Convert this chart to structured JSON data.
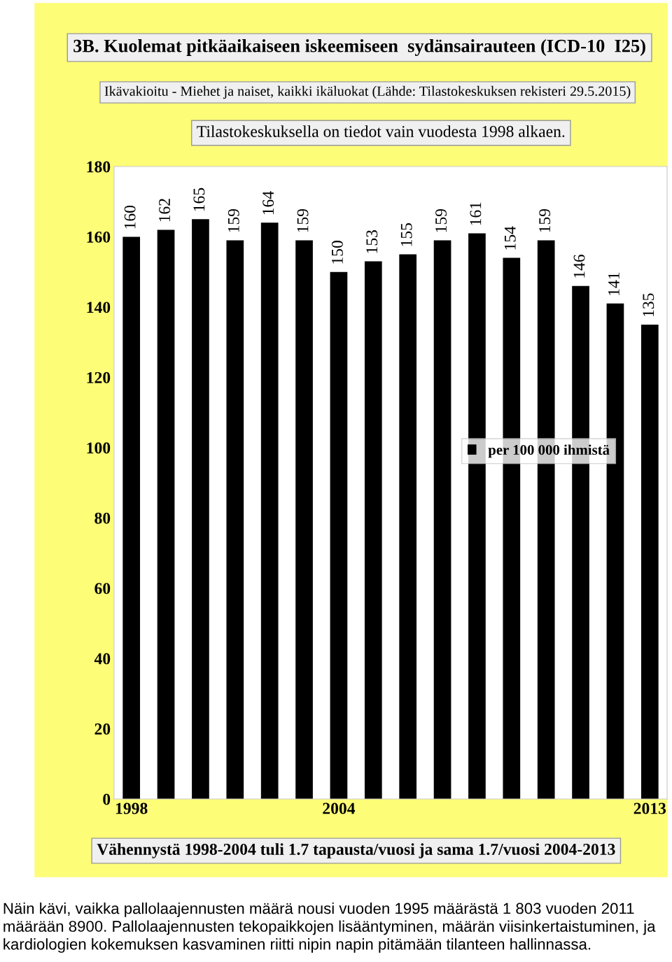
{
  "chart_data": {
    "type": "bar",
    "title": "3B. Kuolemat pitkäaikaiseen iskeemiseen  sydänsairauteen (ICD-10  I25)",
    "subtitle": "Ikävakioitu - Miehet ja naiset, kaikki ikäluokat (Lähde: Tilastokeskuksen rekisteri 29.5.2015)",
    "annotations": [
      "Tilastokeskuksella on tiedot vain vuodesta 1998 alkaen.",
      "Vähennystä 1998-2004 tuli 1.7 tapausta/vuosi ja sama 1.7/vuosi 2004-2013",
      "Näin kävi, vaikka pallolaajennusten määrä nousi vuoden 1995 määrästä 1 803 vuoden 2011 määrään 8900. Pallolaajennusten tekopaikkojen lisääntyminen, määrän viisinkertaistuminen, ja kardiologien kokemuksen kasvaminen riitti nipin napin pitämään tilanteen hallinnassa."
    ],
    "categories": [
      "1998",
      null,
      null,
      null,
      null,
      null,
      "2004",
      null,
      null,
      null,
      null,
      null,
      null,
      null,
      null,
      "2013"
    ],
    "series": [
      {
        "name": "per 100 000 ihmistä",
        "color": "#000000",
        "values": [
          160,
          162,
          165,
          159,
          164,
          159,
          150,
          153,
          155,
          159,
          161,
          154,
          159,
          146,
          141,
          135
        ]
      }
    ],
    "ylim": [
      0,
      180
    ],
    "yticks": [
      0,
      20,
      40,
      60,
      80,
      100,
      120,
      140,
      160,
      180
    ],
    "data_labels": true,
    "legend": "right",
    "grid": false
  }
}
